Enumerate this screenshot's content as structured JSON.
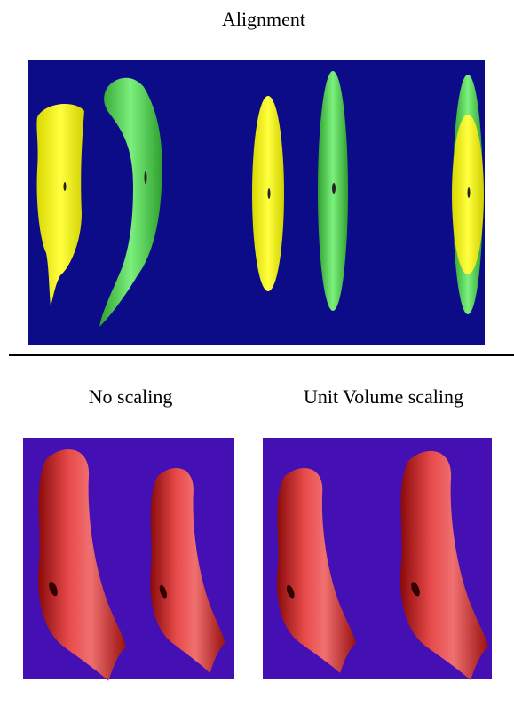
{
  "figure": {
    "title": "Alignment",
    "panels": [
      {
        "label": "No scaling"
      },
      {
        "label": "Unit Volume scaling"
      }
    ]
  }
}
